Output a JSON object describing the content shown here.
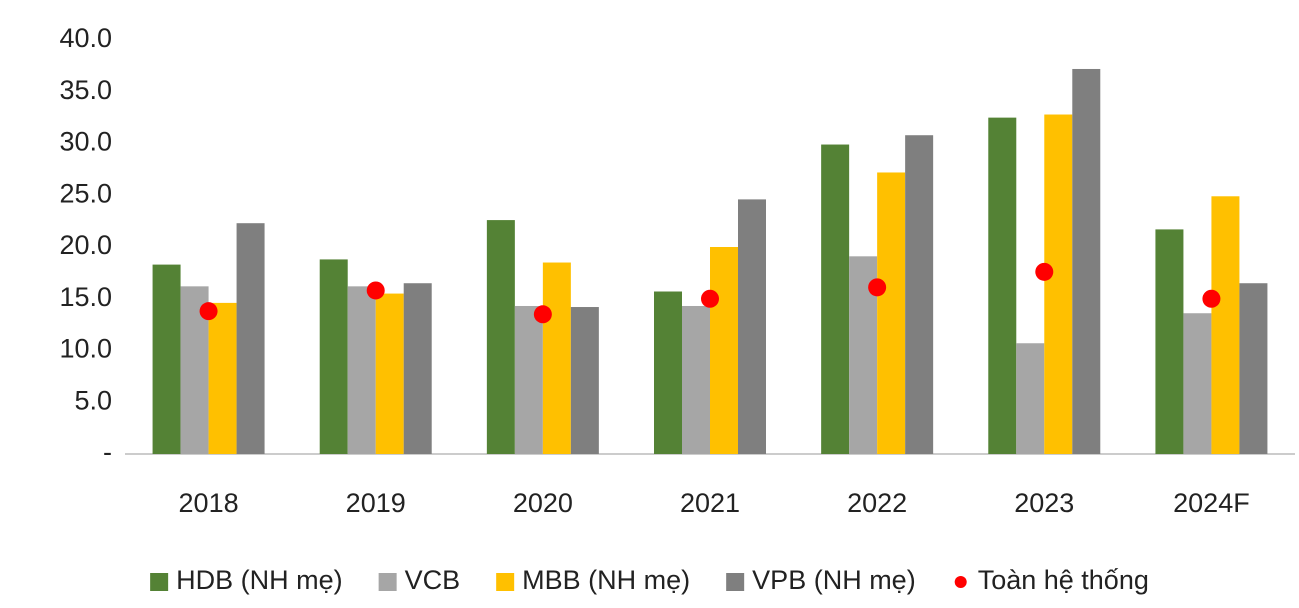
{
  "chart_data": {
    "type": "bar",
    "categories": [
      "2018",
      "2019",
      "2020",
      "2021",
      "2022",
      "2023",
      "2024F"
    ],
    "series": [
      {
        "name": "HDB (NH mẹ)",
        "color": "#548235",
        "values": [
          18.3,
          18.8,
          22.6,
          15.7,
          29.9,
          32.5,
          21.7
        ]
      },
      {
        "name": "VCB",
        "color": "#a6a6a6",
        "values": [
          16.2,
          16.2,
          14.3,
          14.3,
          19.1,
          10.7,
          13.6
        ]
      },
      {
        "name": "MBB (NH mẹ)",
        "color": "#ffc000",
        "values": [
          14.6,
          15.5,
          18.5,
          20.0,
          27.2,
          32.8,
          24.9
        ]
      },
      {
        "name": "VPB (NH mẹ)",
        "color": "#7f7f7f",
        "values": [
          22.3,
          16.5,
          14.2,
          24.6,
          30.8,
          37.2,
          16.5
        ]
      },
      {
        "name": "Toàn hệ thống",
        "color": "#ff0000",
        "type": "scatter",
        "values": [
          13.8,
          15.8,
          13.5,
          15.0,
          16.1,
          17.6,
          15.0
        ]
      }
    ],
    "ylim": [
      0,
      40
    ],
    "yticks": [
      {
        "value": 0,
        "label": "-"
      },
      {
        "value": 5,
        "label": "5.0"
      },
      {
        "value": 10,
        "label": "10.0"
      },
      {
        "value": 15,
        "label": "15.0"
      },
      {
        "value": 20,
        "label": "20.0"
      },
      {
        "value": 25,
        "label": "25.0"
      },
      {
        "value": 30,
        "label": "30.0"
      },
      {
        "value": 35,
        "label": "35.0"
      },
      {
        "value": 40,
        "label": "40.0"
      }
    ],
    "grid": false,
    "legend": "bottom"
  }
}
